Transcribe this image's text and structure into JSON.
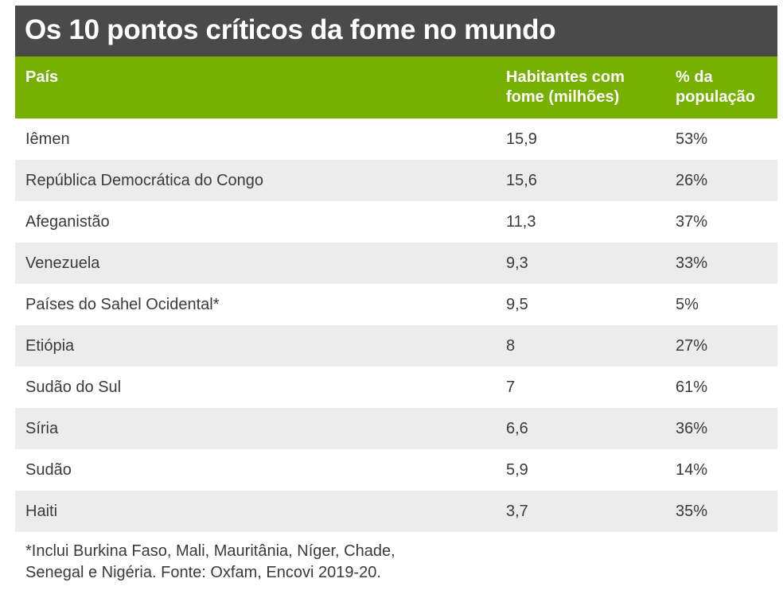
{
  "title": "Os 10 pontos críticos da fome no mundo",
  "colors": {
    "title_bg": "#4a4a4a",
    "header_bg": "#76b000",
    "row_alt_bg": "#ececec",
    "text": "#3a3a3a"
  },
  "table": {
    "headers": [
      "País",
      "Habitantes com fome (milhões)",
      "% da população"
    ],
    "rows": [
      {
        "country": "Iêmen",
        "hungry_millions": "15,9",
        "pct_population": "53%"
      },
      {
        "country": "República Democrática do Congo",
        "hungry_millions": "15,6",
        "pct_population": "26%"
      },
      {
        "country": "Afeganistão",
        "hungry_millions": "11,3",
        "pct_population": "37%"
      },
      {
        "country": "Venezuela",
        "hungry_millions": "9,3",
        "pct_population": "33%"
      },
      {
        "country": "Países do Sahel Ocidental*",
        "hungry_millions": "9,5",
        "pct_population": "5%"
      },
      {
        "country": "Etiópia",
        "hungry_millions": "8",
        "pct_population": "27%"
      },
      {
        "country": "Sudão do Sul",
        "hungry_millions": "7",
        "pct_population": "61%"
      },
      {
        "country": "Síria",
        "hungry_millions": "6,6",
        "pct_population": "36%"
      },
      {
        "country": "Sudão",
        "hungry_millions": "5,9",
        "pct_population": "14%"
      },
      {
        "country": "Haiti",
        "hungry_millions": "3,7",
        "pct_population": "35%"
      }
    ]
  },
  "footnote": {
    "line1": "*Inclui Burkina Faso, Mali, Mauritânia, Níger, Chade,",
    "line2": "Senegal e Nigéria. Fonte: Oxfam, Encovi 2019-20."
  }
}
